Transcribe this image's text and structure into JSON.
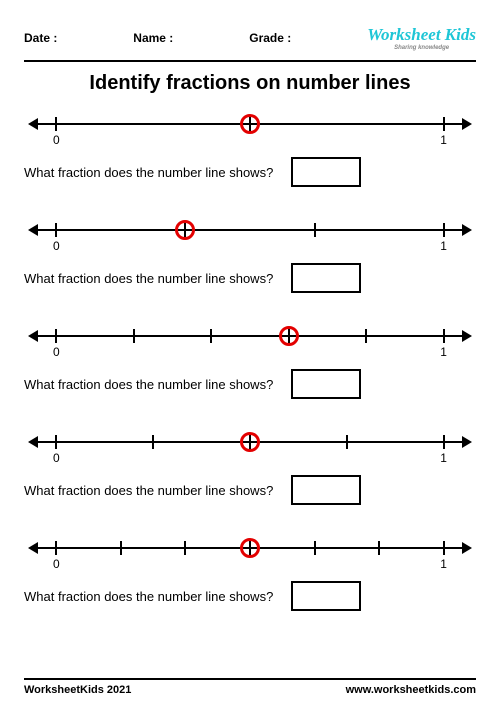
{
  "header": {
    "date_label": "Date :",
    "name_label": "Name :",
    "grade_label": "Grade :"
  },
  "logo": {
    "main": "Worksheet Kids",
    "sub": "Sharing knowledge",
    "color": "#1ec6d6",
    "pencil_body": "#e63b7a",
    "pencil_tip": "#f0c040"
  },
  "title": "Identify fractions on number lines",
  "question_text": "What fraction does the number line shows?",
  "axis": {
    "start_label": "0",
    "end_label": "1",
    "start_pct": 6,
    "end_pct": 94,
    "line_color": "#000000",
    "line_width": 2,
    "tick_height": 14,
    "arrow_size": 10
  },
  "circle": {
    "color": "#e30000",
    "stroke": 3,
    "diameter": 20
  },
  "answer_box": {
    "width": 70,
    "height": 30,
    "border": 2
  },
  "problems": [
    {
      "divisions": 2,
      "circled_index": 1
    },
    {
      "divisions": 3,
      "circled_index": 1
    },
    {
      "divisions": 5,
      "circled_index": 3
    },
    {
      "divisions": 4,
      "circled_index": 2
    },
    {
      "divisions": 6,
      "circled_index": 3
    }
  ],
  "footer": {
    "left": "WorksheetKids 2021",
    "right": "www.worksheetkids.com"
  }
}
